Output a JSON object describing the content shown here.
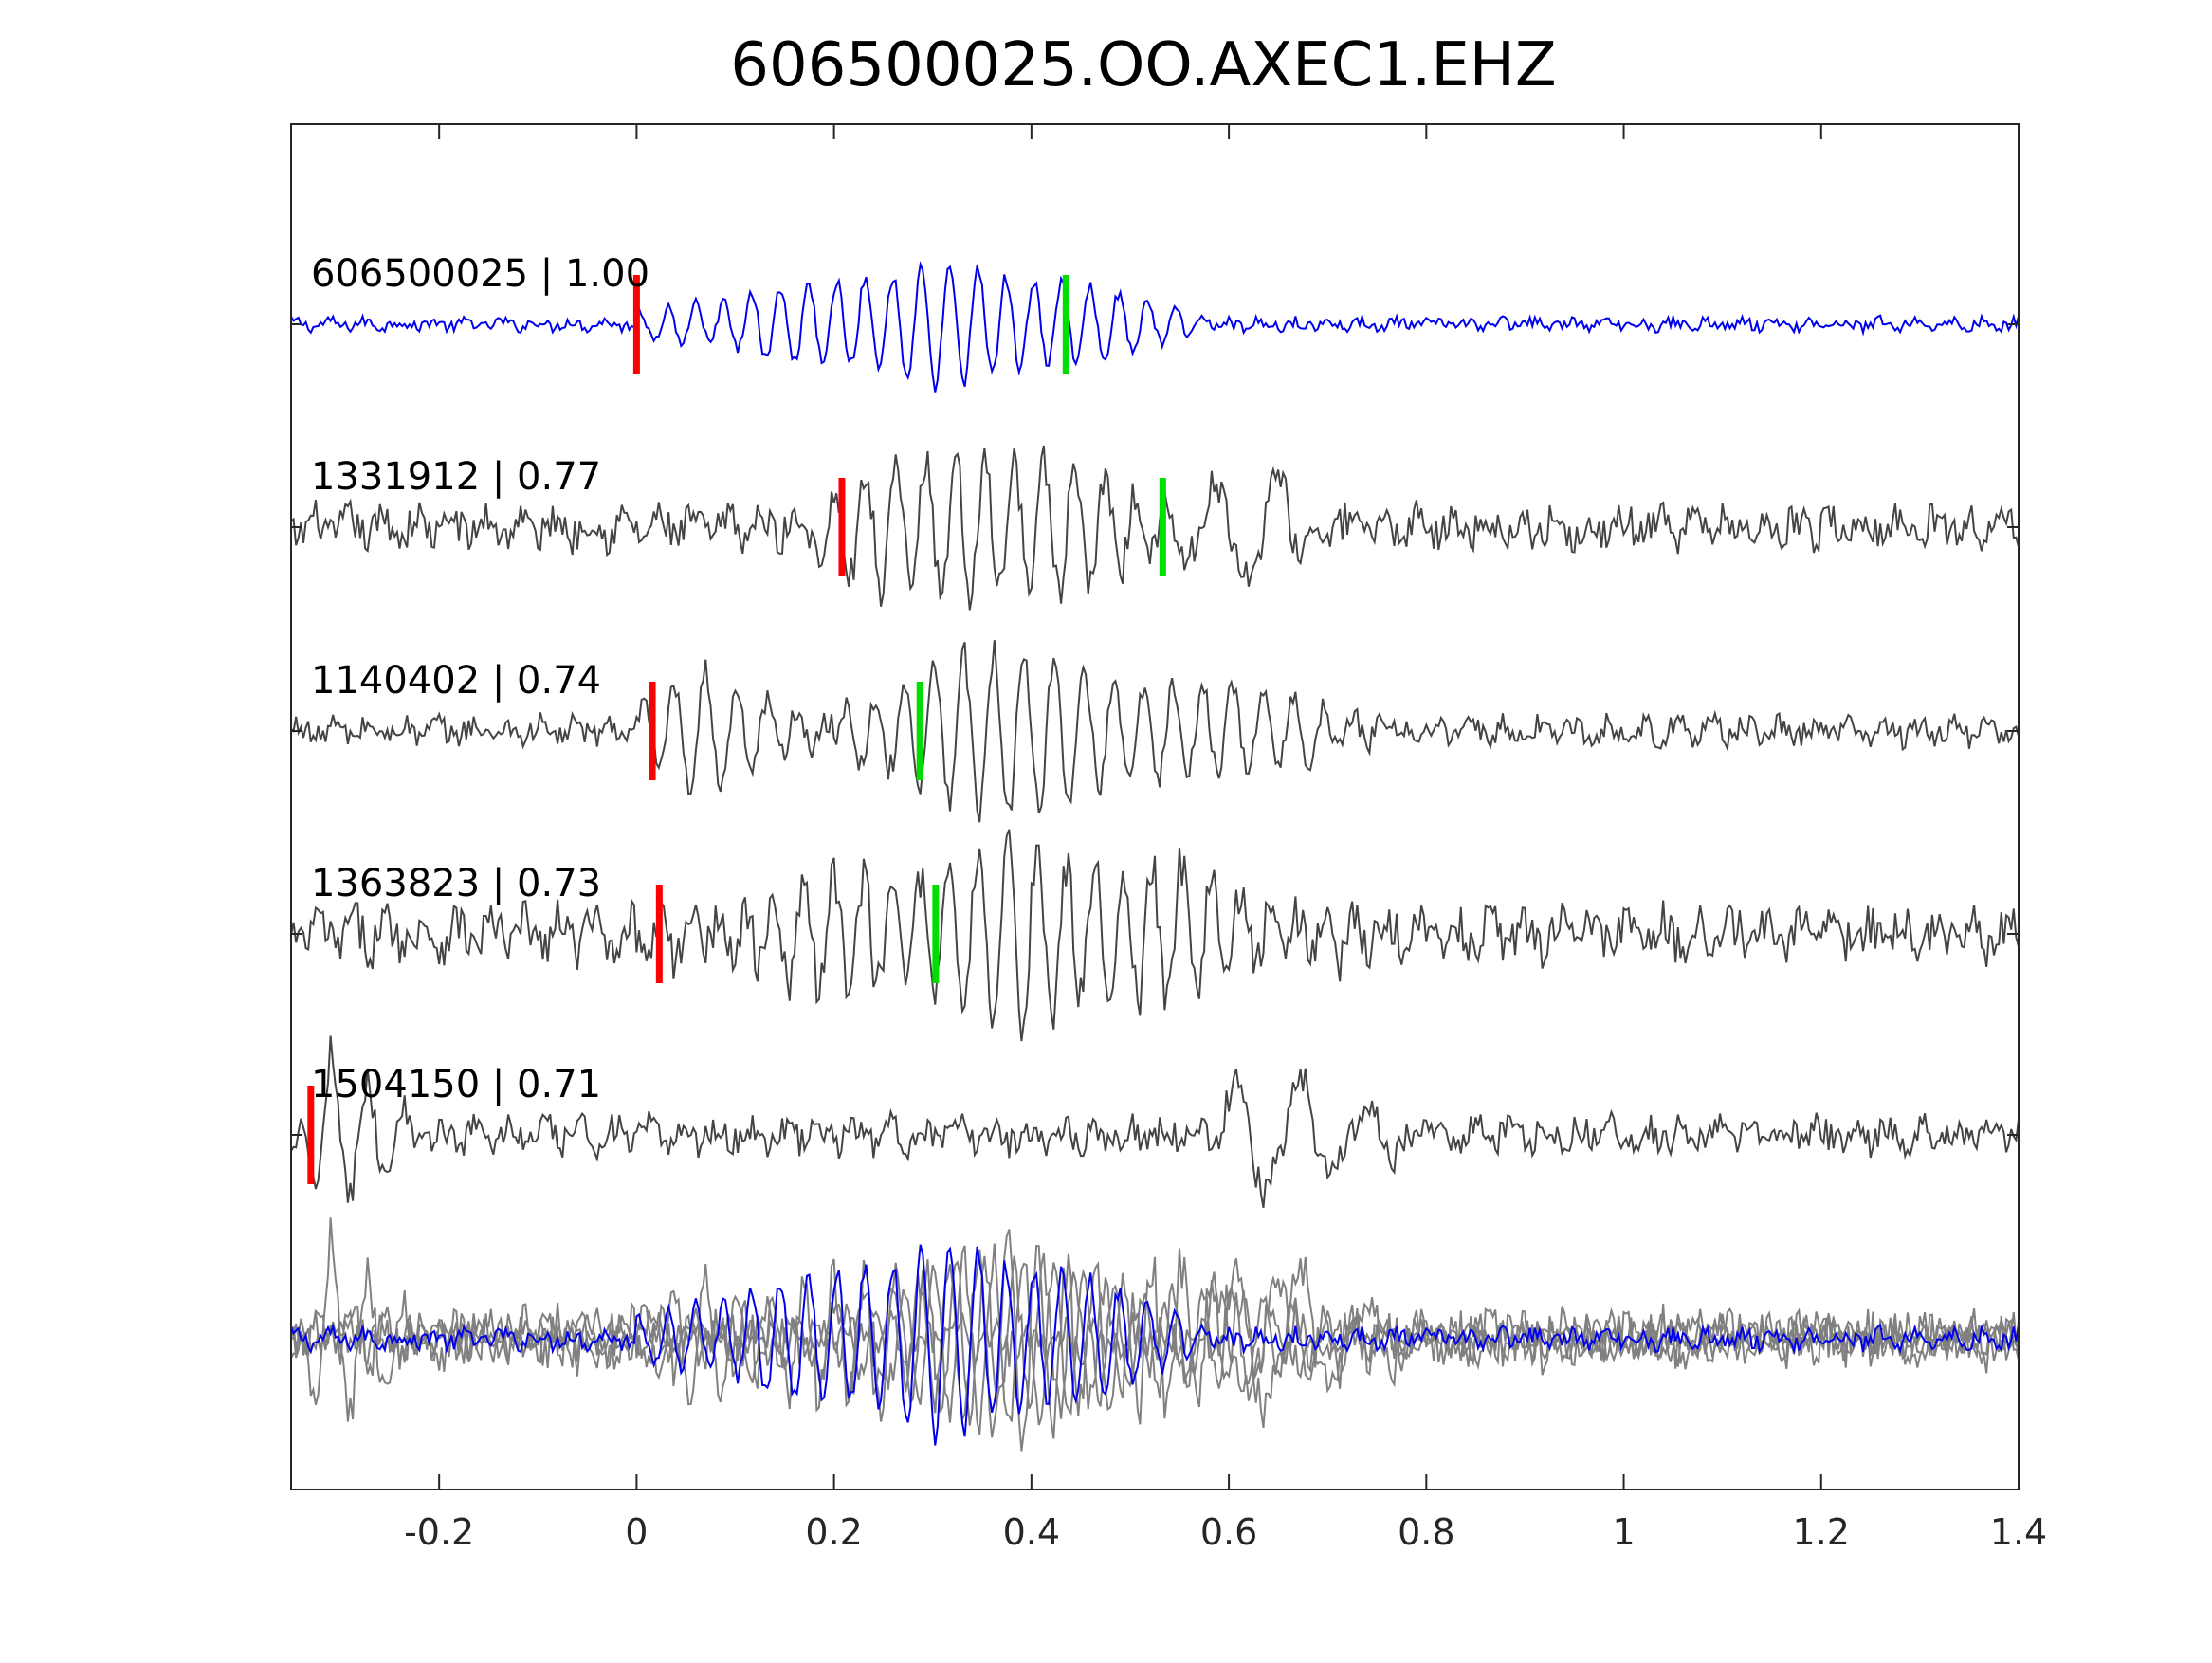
{
  "chart_data": {
    "type": "line",
    "title": "606500025.OO.AXEC1.EHZ",
    "xlabel": "",
    "ylabel": "",
    "xlim": [
      -0.35,
      1.4
    ],
    "xticks": [
      -0.2,
      0,
      0.2,
      0.4,
      0.6,
      0.8,
      1,
      1.2,
      1.4
    ],
    "xtick_labels": [
      "-0.2",
      "0",
      "0.2",
      "0.4",
      "0.6",
      "0.8",
      "1",
      "1.2",
      "1.4"
    ],
    "grid": false,
    "colors": {
      "master": "#0000ee",
      "neighbor": "#444444",
      "stack_neighbor": "#808080",
      "p_pick": "#ff0000",
      "s_pick": "#00dd00",
      "axes": "#262626"
    },
    "traces": [
      {
        "label": "606500025 | 1.00",
        "id": "606500025",
        "cc": 1.0,
        "master": true,
        "p_pick": 0.0,
        "s_pick": 0.435,
        "bursts": [
          {
            "t0": 0.0,
            "t1": 0.58,
            "amp": 1.0,
            "peak": 0.32,
            "freq": 35
          }
        ],
        "noise": 0.14
      },
      {
        "label": "1331912 | 0.77",
        "id": "1331912",
        "cc": 0.77,
        "master": false,
        "p_pick": 0.208,
        "s_pick": 0.533,
        "bursts": [
          {
            "t0": 0.18,
            "t1": 0.56,
            "amp": 0.95,
            "peak": 0.32,
            "freq": 33
          },
          {
            "t0": 0.55,
            "t1": 0.7,
            "amp": 0.7,
            "peak": 0.62,
            "freq": 16
          }
        ],
        "noise": 0.3
      },
      {
        "label": "1140402 | 0.74",
        "id": "1140402",
        "cc": 0.74,
        "master": false,
        "p_pick": 0.016,
        "s_pick": 0.287,
        "bursts": [
          {
            "t0": 0.0,
            "t1": 0.2,
            "amp": 0.7,
            "peak": 0.06,
            "freq": 32
          },
          {
            "t0": 0.2,
            "t1": 0.76,
            "amp": 0.9,
            "peak": 0.33,
            "freq": 33
          }
        ],
        "noise": 0.2
      },
      {
        "label": "1363823 | 0.73",
        "id": "1363823",
        "cc": 0.73,
        "master": false,
        "p_pick": 0.023,
        "s_pick": 0.303,
        "bursts": [
          {
            "t0": 0.02,
            "t1": 0.72,
            "amp": 0.95,
            "peak": 0.42,
            "freq": 34
          }
        ],
        "noise": 0.38
      },
      {
        "label": "1504150 | 0.71",
        "id": "1504150",
        "cc": 0.71,
        "master": false,
        "p_pick": -0.33,
        "bursts": [
          {
            "t0": -0.34,
            "t1": -0.22,
            "amp": 1.0,
            "peak": -0.31,
            "freq": 28
          },
          {
            "t0": 0.58,
            "t1": 0.8,
            "amp": 0.85,
            "peak": 0.62,
            "freq": 15
          }
        ],
        "noise": 0.3
      }
    ],
    "stack": {
      "label": "",
      "members": [
        "606500025",
        "1331912",
        "1140402",
        "1363823",
        "1504150"
      ]
    }
  }
}
